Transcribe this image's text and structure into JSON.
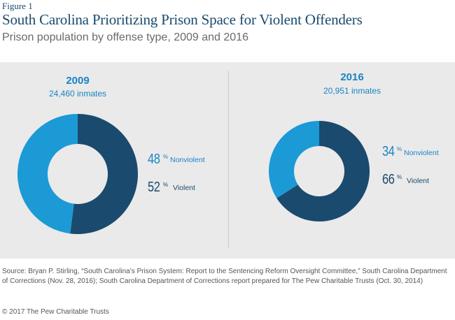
{
  "figure_label": "Figure 1",
  "colors": {
    "nonviolent": "#1b9ad6",
    "violent": "#1a4a6e",
    "panel": "#eaeaea"
  },
  "chart_data": [
    {
      "type": "pie",
      "title": "South Carolina Prioritizing Prison Space for Violent Offenders",
      "subtitle": "Prison population by offense type, 2009 and 2016",
      "year": "2009",
      "total_label": "24,460 inmates",
      "slices": [
        {
          "label": "Nonviolent",
          "value": 48,
          "display": "48",
          "unit": "%"
        },
        {
          "label": "Violent",
          "value": 52,
          "display": "52",
          "unit": "%"
        }
      ]
    },
    {
      "type": "pie",
      "year": "2016",
      "total_label": "20,951 inmates",
      "slices": [
        {
          "label": "Nonviolent",
          "value": 34,
          "display": "34",
          "unit": "%"
        },
        {
          "label": "Violent",
          "value": 66,
          "display": "66",
          "unit": "%"
        }
      ]
    }
  ],
  "source": "Source: Bryan P. Stirling, “South Carolina’s Prison System: Report to the Sentencing Reform Oversight Committee,” South Carolina Department of Corrections (Nov. 28, 2016); South Carolina Department of Corrections report prepared for The Pew Charitable Trusts (Oct. 30, 2014)",
  "copyright": "© 2017 The Pew Charitable Trusts"
}
